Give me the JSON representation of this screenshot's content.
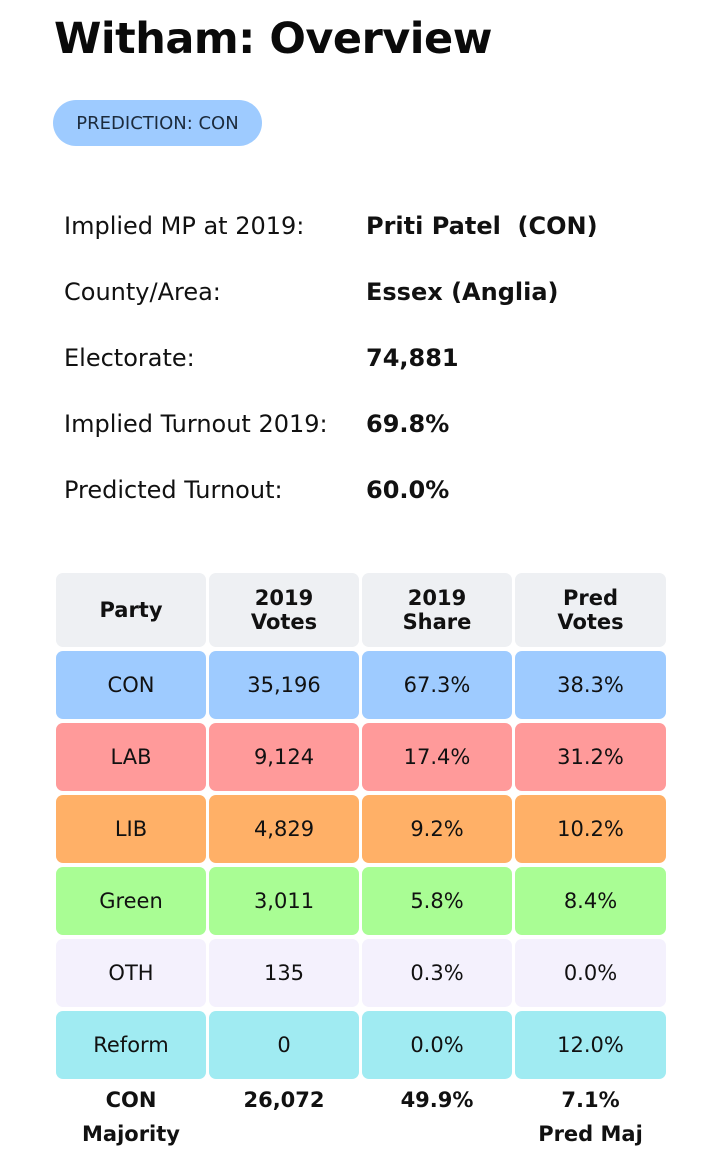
{
  "page": {
    "title": "Witham: Overview"
  },
  "prediction_badge": {
    "label": "PREDICTION: CON",
    "color": "#9ecbff"
  },
  "info": [
    {
      "label": "Implied MP at 2019:",
      "value": "Priti Patel  (CON)"
    },
    {
      "label": "County/Area:",
      "value": "Essex (Anglia)"
    },
    {
      "label": "Electorate:",
      "value": "74,881"
    },
    {
      "label": "Implied Turnout 2019:",
      "value": "69.8%"
    },
    {
      "label": "Predicted Turnout:",
      "value": "60.0%"
    }
  ],
  "table": {
    "headers": [
      [
        "Party"
      ],
      [
        "2019",
        "Votes"
      ],
      [
        "2019",
        "Share"
      ],
      [
        "Pred",
        "Votes"
      ]
    ],
    "rows": [
      {
        "party": "CON",
        "votes": "35,196",
        "share": "67.3%",
        "pred": "38.3%",
        "color": "#9ecbff"
      },
      {
        "party": "LAB",
        "votes": "9,124",
        "share": "17.4%",
        "pred": "31.2%",
        "color": "#ff9a9a"
      },
      {
        "party": "LIB",
        "votes": "4,829",
        "share": "9.2%",
        "pred": "10.2%",
        "color": "#ffb067"
      },
      {
        "party": "Green",
        "votes": "3,011",
        "share": "5.8%",
        "pred": "8.4%",
        "color": "#a9fd94"
      },
      {
        "party": "OTH",
        "votes": "135",
        "share": "0.3%",
        "pred": "0.0%",
        "color": "#f4f1fd"
      },
      {
        "party": "Reform",
        "votes": "0",
        "share": "0.0%",
        "pred": "12.0%",
        "color": "#a0ebf2"
      }
    ],
    "footer": {
      "party": "CON",
      "majority_label": "Majority",
      "majority_votes": "26,072",
      "majority_share": "49.9%",
      "pred_majority": "7.1%",
      "pred_majority_label": "Pred Maj"
    }
  }
}
